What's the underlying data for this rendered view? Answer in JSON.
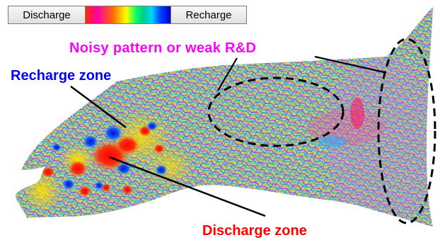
{
  "legend": {
    "left_label": "Discharge",
    "right_label": "Recharge"
  },
  "labels": {
    "noisy": "Noisy pattern or weak R&D",
    "recharge_zone": "Recharge zone",
    "discharge_zone": "Discharge zone"
  },
  "colors": {
    "noisy_label": "#ff00ff",
    "recharge_label": "#0000ff",
    "discharge_label": "#ff0000"
  }
}
